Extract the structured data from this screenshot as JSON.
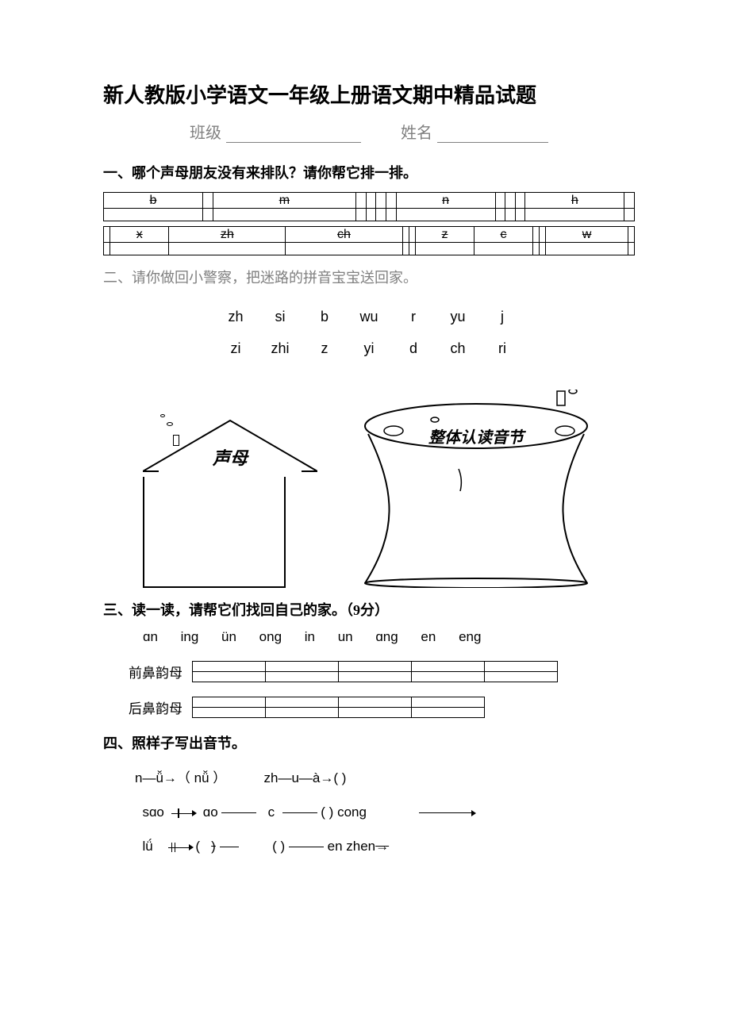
{
  "title": "新人教版小学语文一年级上册语文期中精品试题",
  "class_label": "班级",
  "name_label": "姓名",
  "sections": {
    "s1": {
      "heading": "一、哪个声母朋友没有来排队？请你帮它排一排。",
      "row1": [
        "b",
        "",
        "m",
        "",
        "",
        "",
        "",
        "n",
        "",
        "",
        "",
        "h",
        ""
      ],
      "row2": [
        "",
        "x",
        "zh",
        "ch",
        "",
        "",
        "z",
        "c",
        "",
        "",
        "w",
        ""
      ]
    },
    "s2": {
      "heading": "二、请你做回小警察，把迷路的拼音宝宝送回家。",
      "line1": [
        "zh",
        "si",
        "b",
        "wu",
        "r",
        "yu",
        "j"
      ],
      "line2": [
        "zi",
        "zhi",
        "z",
        "yi",
        "d",
        "ch",
        "ri"
      ],
      "house_label": "声母",
      "vessel_label": "整体认读音节"
    },
    "s3": {
      "heading": "三、读一读，请帮它们找回自己的家。（9分）",
      "items": "ɑn  inɡ  ün  onɡ  in  un  ɑnɡ  en  enɡ",
      "cat1": "前鼻韵母",
      "cat2": "后鼻韵母"
    },
    "s4": {
      "heading": "四、照样子写出音节。",
      "r1a": "n—ǚ→（ nǚ ）",
      "r1b": "zh—u—à→(     )",
      "r2a": "sɑo",
      "r2b": "ɑo",
      "r2c": "c",
      "r2d": "( )  conɡ",
      "r3a": "lǘ",
      "r3b": "(",
      "r3c": ")",
      "r3d": "(   )",
      "r3e": "en    zhen"
    }
  },
  "colors": {
    "text": "#000000",
    "muted": "#808080",
    "background": "#ffffff",
    "border": "#000000"
  }
}
